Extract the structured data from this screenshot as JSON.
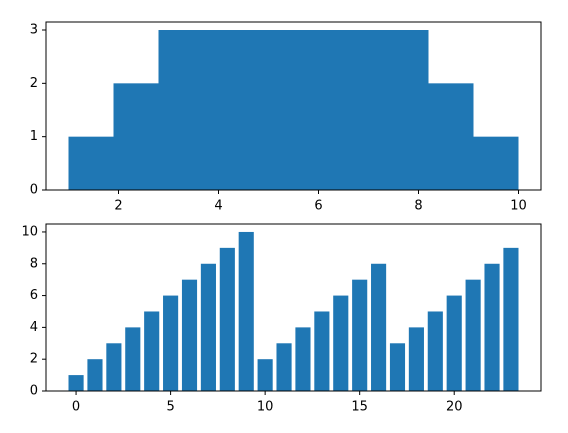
{
  "chart_data": [
    {
      "type": "histogram",
      "color": "#1f77b4",
      "bins": [
        1,
        1.9,
        2.8,
        3.7,
        4.6,
        5.5,
        6.4,
        7.3,
        8.2,
        9.1,
        10
      ],
      "values": [
        1,
        2,
        3,
        3,
        3,
        3,
        3,
        3,
        2,
        1
      ],
      "xlim": [
        0.55,
        10.45
      ],
      "ylim": [
        0,
        3.15
      ],
      "xticks": [
        2,
        4,
        6,
        8,
        10
      ],
      "yticks": [
        0,
        1,
        2,
        3
      ]
    },
    {
      "type": "bar",
      "color": "#1f77b4",
      "x": [
        0,
        1,
        2,
        3,
        4,
        5,
        6,
        7,
        8,
        9,
        10,
        11,
        12,
        13,
        14,
        15,
        16,
        17,
        18,
        19,
        20,
        21,
        22,
        23
      ],
      "values": [
        1,
        2,
        3,
        4,
        5,
        6,
        7,
        8,
        9,
        10,
        2,
        3,
        4,
        5,
        6,
        7,
        8,
        3,
        4,
        5,
        6,
        7,
        8,
        9
      ],
      "xlim": [
        -1.59,
        24.59
      ],
      "ylim": [
        0,
        10.5
      ],
      "xticks": [
        0,
        5,
        10,
        15,
        20
      ],
      "yticks": [
        0,
        2,
        4,
        6,
        8,
        10
      ]
    }
  ]
}
